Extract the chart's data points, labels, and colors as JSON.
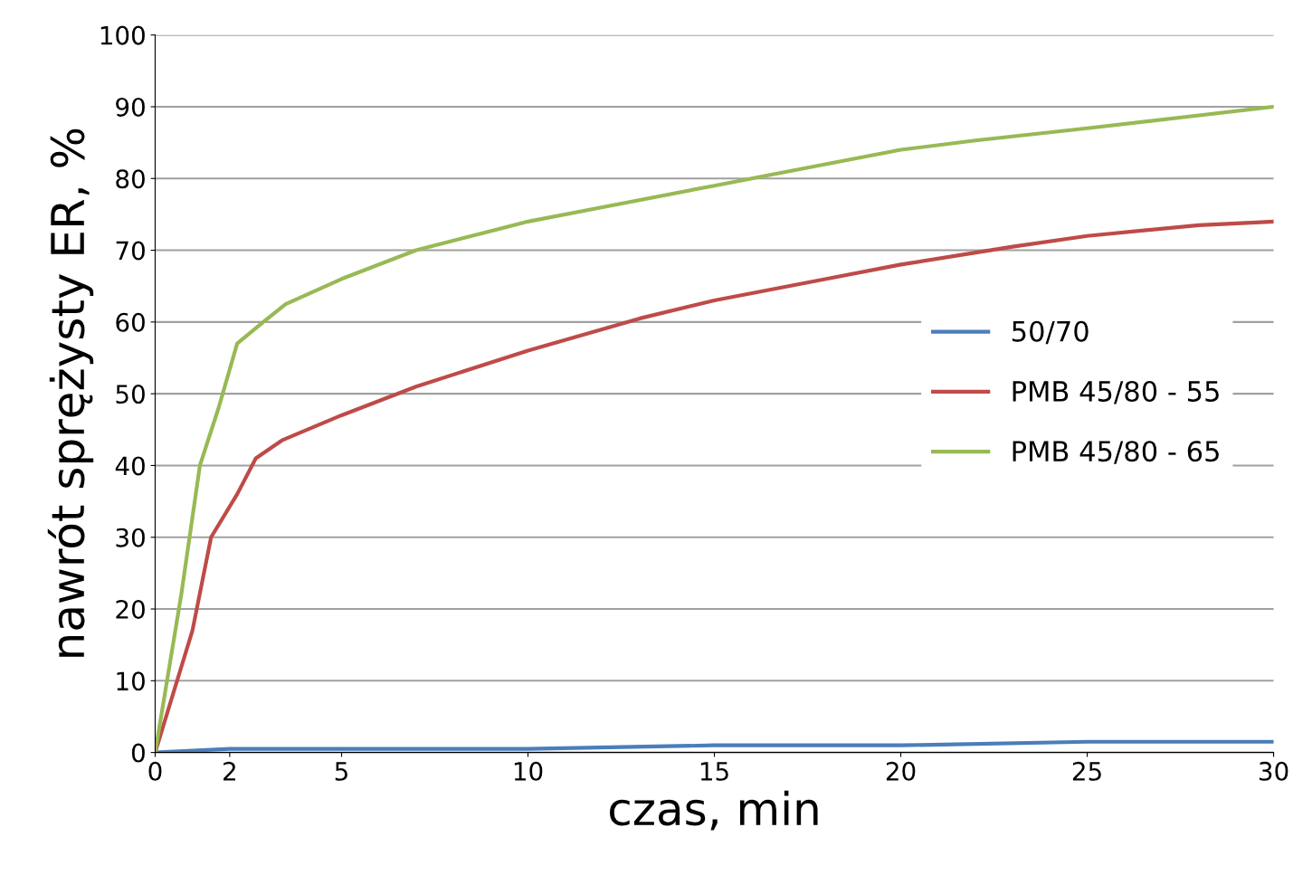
{
  "chart_data": {
    "type": "line",
    "xlabel": "czas, min",
    "ylabel": "nawrót sprężysty ER, %",
    "xlim": [
      0,
      30
    ],
    "xticks": [
      0,
      2,
      5,
      10,
      15,
      20,
      25,
      30
    ],
    "ylim": [
      0,
      100
    ],
    "yticks": [
      0,
      10,
      20,
      30,
      40,
      50,
      60,
      70,
      80,
      90,
      100
    ],
    "grid": "y",
    "legend": "center right",
    "marker": "none",
    "line_style": "solid",
    "series": [
      {
        "name": "50/70",
        "color": "#4a7ebb",
        "x": [
          0,
          2,
          5,
          10,
          15,
          20,
          25,
          30
        ],
        "values": [
          0,
          0.5,
          0.5,
          0.5,
          1,
          1,
          1.5,
          1.5
        ]
      },
      {
        "name": "PMB 45/80 - 55",
        "color": "#be4b48",
        "x": [
          0,
          1,
          1.5,
          2.2,
          2.7,
          3.4,
          5,
          7,
          10,
          13,
          15,
          18,
          20,
          23,
          25,
          28,
          30
        ],
        "values": [
          0,
          17,
          30,
          36,
          41,
          43.5,
          47,
          51,
          56,
          60.5,
          63,
          66,
          68,
          70.5,
          72,
          73.5,
          74
        ]
      },
      {
        "name": "PMB 45/80 - 65",
        "color": "#98b954",
        "x": [
          0,
          0.7,
          1.2,
          1.7,
          2.2,
          2.9,
          3.5,
          5,
          7,
          10,
          12,
          15,
          16.5,
          20,
          22,
          25,
          28,
          30
        ],
        "values": [
          0,
          22,
          40,
          48,
          57,
          60,
          62.5,
          66,
          70,
          74,
          76,
          79,
          80.5,
          84,
          85.3,
          87,
          88.8,
          90
        ]
      }
    ]
  }
}
